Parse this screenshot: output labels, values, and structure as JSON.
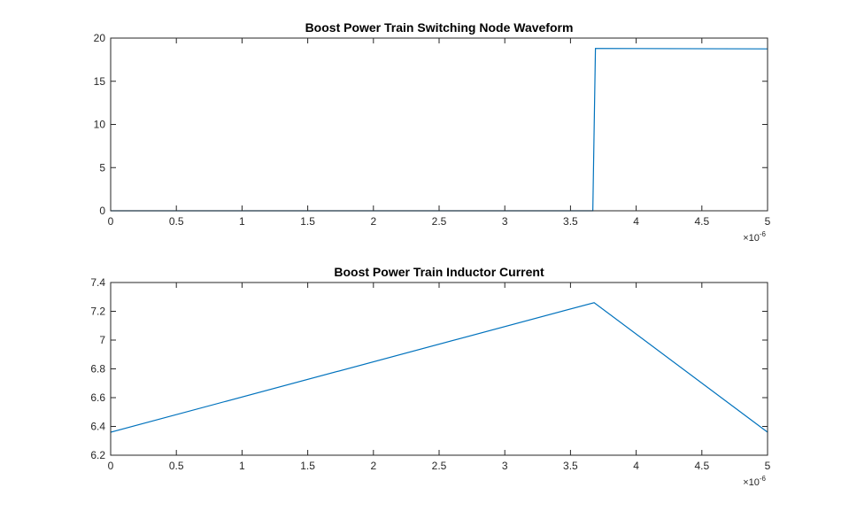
{
  "chart_data": [
    {
      "type": "line",
      "title": "Boost Power Train Switching Node Waveform",
      "x_multiplier": {
        "base": "×10",
        "exponent": "-6"
      },
      "xlim": [
        0,
        5
      ],
      "xticks": [
        0,
        0.5,
        1,
        1.5,
        2,
        2.5,
        3,
        3.5,
        4,
        4.5,
        5
      ],
      "ylim": [
        0,
        20
      ],
      "yticks": [
        0,
        5,
        10,
        15,
        20
      ],
      "series": [
        {
          "color": "#0072bd",
          "x": [
            0,
            3.67,
            3.69,
            5
          ],
          "values": [
            0,
            0,
            18.8,
            18.75
          ]
        }
      ]
    },
    {
      "type": "line",
      "title": "Boost Power Train Inductor Current",
      "x_multiplier": {
        "base": "×10",
        "exponent": "-6"
      },
      "xlim": [
        0,
        5
      ],
      "xticks": [
        0,
        0.5,
        1,
        1.5,
        2,
        2.5,
        3,
        3.5,
        4,
        4.5,
        5
      ],
      "ylim": [
        6.2,
        7.4
      ],
      "yticks": [
        6.2,
        6.4,
        6.6,
        6.8,
        7,
        7.2,
        7.4
      ],
      "series": [
        {
          "color": "#0072bd",
          "x": [
            0,
            3.68,
            5
          ],
          "values": [
            6.36,
            7.26,
            6.36
          ]
        }
      ]
    }
  ]
}
